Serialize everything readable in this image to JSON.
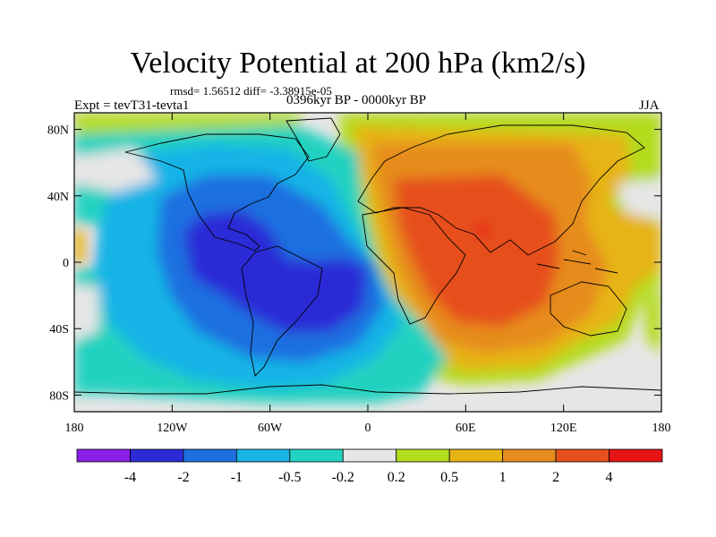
{
  "title": "Velocity Potential at 200 hPa (km2/s)",
  "stats": "rmsd= 1.56512 diff= -3.38915e-05",
  "experiment": "Expt = tevT31-tevta1",
  "period": "0396kyr BP - 0000kyr BP",
  "season": "JJA",
  "map": {
    "lon_range": [
      -180,
      180
    ],
    "lat_range": [
      -90,
      90
    ],
    "lat_tick_values": [
      80,
      40,
      0,
      -40,
      -80
    ],
    "lat_ticks": [
      "80N",
      "40N",
      "0",
      "40S",
      "80S"
    ],
    "lon_tick_values": [
      -180,
      -120,
      -60,
      0,
      60,
      120,
      180
    ],
    "lon_ticks": [
      "180",
      "120W",
      "60W",
      "0",
      "60E",
      "120E",
      "180"
    ]
  },
  "colorbar": {
    "colors": [
      "#8a1ee6",
      "#2b2bd6",
      "#1e6fe0",
      "#19b4e6",
      "#22d2c0",
      "#e6e6e6",
      "#b4dc1e",
      "#e6b414",
      "#e68c1e",
      "#e6501e",
      "#e61414"
    ],
    "labels": [
      "-4",
      "-2",
      "-1",
      "-0.5",
      "-0.2",
      "0.2",
      "0.5",
      "1",
      "2",
      "4"
    ]
  }
}
